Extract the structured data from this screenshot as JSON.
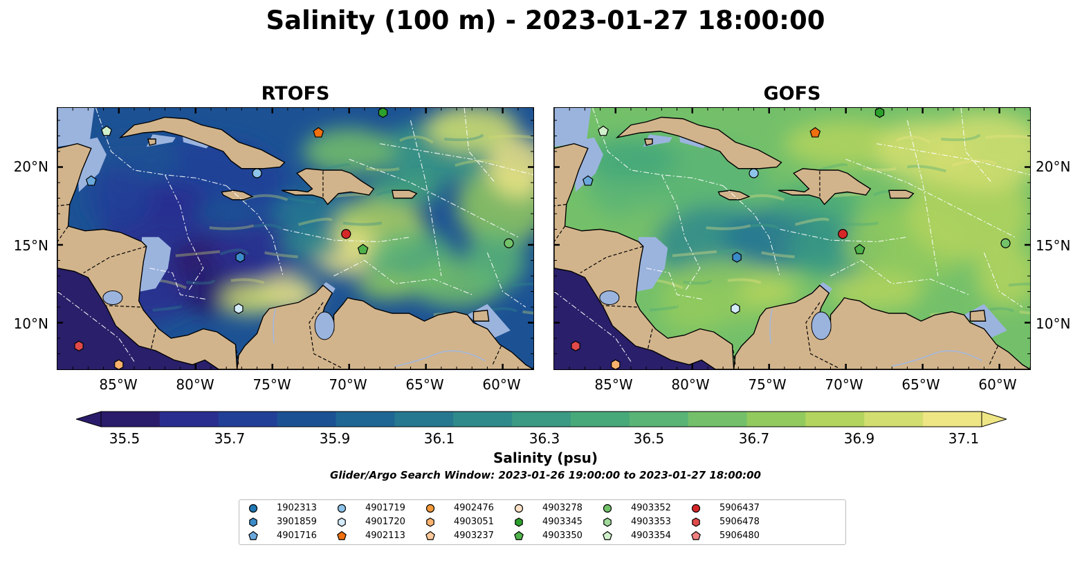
{
  "title": "Salinity (100 m) - 2023-01-27 18:00:00",
  "panels": [
    {
      "title": "RTOFS",
      "model": "rtofs"
    },
    {
      "title": "GOFS",
      "model": "gofs"
    }
  ],
  "lat_labels": [
    "20°N",
    "15°N",
    "10°N"
  ],
  "lon_labels": [
    "85°W",
    "80°W",
    "75°W",
    "70°W",
    "65°W",
    "60°W"
  ],
  "map_extent": {
    "lon": [
      -89,
      -58
    ],
    "lat": [
      7,
      23.8
    ]
  },
  "colorbar": {
    "label": "Salinity (psu)",
    "ticks": [
      "35.5",
      "35.7",
      "35.9",
      "36.1",
      "36.3",
      "36.5",
      "36.7",
      "36.9",
      "37.1"
    ],
    "range": [
      35.5,
      37.1
    ],
    "extend": "both",
    "colors": [
      "#2b1b6b",
      "#2a2e8f",
      "#223f98",
      "#1c5294",
      "#1f6694",
      "#267890",
      "#2f8a8c",
      "#3a9a84",
      "#47a87a",
      "#5ab476",
      "#74c06a",
      "#92ca5e",
      "#b3d45e",
      "#d2de70",
      "#eee585"
    ]
  },
  "search_window": "Glider/Argo Search Window: 2023-01-26 19:00:00 to 2023-01-27 18:00:00",
  "map_colors": {
    "land": "#d2b48c",
    "shelf": "#9bb4de",
    "pacific": "#2a1f6a",
    "coastline": "#000000",
    "border": "#000000",
    "eez": "#ffffff"
  },
  "legend": {
    "items": [
      {
        "id": "1902313",
        "marker": "circle",
        "color": "#1f77b4"
      },
      {
        "id": "3901859",
        "marker": "hexagon",
        "color": "#3b8bc9"
      },
      {
        "id": "4901716",
        "marker": "pentagon",
        "color": "#6aa8dc"
      },
      {
        "id": "4901719",
        "marker": "circle",
        "color": "#8ec3ea"
      },
      {
        "id": "4901720",
        "marker": "hexagon",
        "color": "#d4ebfa"
      },
      {
        "id": "4902113",
        "marker": "pentagon",
        "color": "#f0700f"
      },
      {
        "id": "4902476",
        "marker": "circle",
        "color": "#f39a3a"
      },
      {
        "id": "4903051",
        "marker": "hexagon",
        "color": "#f9b36e"
      },
      {
        "id": "4903237",
        "marker": "pentagon",
        "color": "#fcc99a"
      },
      {
        "id": "4903278",
        "marker": "circle",
        "color": "#fde2c8"
      },
      {
        "id": "4903345",
        "marker": "hexagon",
        "color": "#2ca02c"
      },
      {
        "id": "4903350",
        "marker": "pentagon",
        "color": "#4fb24a"
      },
      {
        "id": "4903352",
        "marker": "circle",
        "color": "#73c26a"
      },
      {
        "id": "4903353",
        "marker": "hexagon",
        "color": "#a0d99a"
      },
      {
        "id": "4903354",
        "marker": "pentagon",
        "color": "#d0f0cc"
      },
      {
        "id": "5906437",
        "marker": "circle",
        "color": "#d62728"
      },
      {
        "id": "5906478",
        "marker": "hexagon",
        "color": "#e04a4a"
      },
      {
        "id": "5906480",
        "marker": "pentagon",
        "color": "#f08080"
      }
    ]
  },
  "floats": [
    {
      "id": "4902113",
      "lon": -72.0,
      "lat": 22.2
    },
    {
      "id": "4903345",
      "lon": -67.8,
      "lat": 23.5
    },
    {
      "id": "4903354",
      "lon": -85.8,
      "lat": 22.3
    },
    {
      "id": "4901716",
      "lon": -86.8,
      "lat": 19.1
    },
    {
      "id": "4901719",
      "lon": -76.0,
      "lat": 19.6
    },
    {
      "id": "5906437",
      "lon": -70.2,
      "lat": 15.7
    },
    {
      "id": "4903350",
      "lon": -69.1,
      "lat": 14.7
    },
    {
      "id": "4903352",
      "lon": -59.6,
      "lat": 15.1
    },
    {
      "id": "3901859",
      "lon": -77.1,
      "lat": 14.2
    },
    {
      "id": "4901720",
      "lon": -77.2,
      "lat": 10.9
    },
    {
      "id": "5906478",
      "lon": -87.6,
      "lat": 8.5
    },
    {
      "id": "4903051",
      "lon": -85.0,
      "lat": 7.3
    }
  ]
}
